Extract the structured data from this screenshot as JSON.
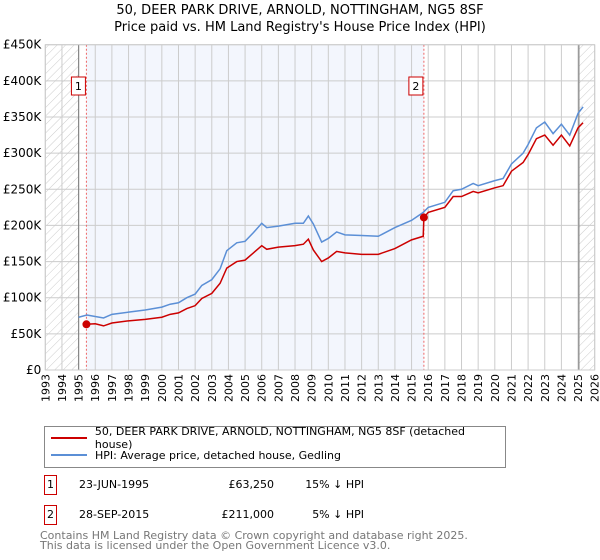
{
  "chart_data": {
    "type": "line",
    "title": "50, DEER PARK DRIVE, ARNOLD, NOTTINGHAM, NG5 8SF",
    "subtitle": "Price paid vs. HM Land Registry's House Price Index (HPI)",
    "xlim": [
      1993,
      2026
    ],
    "ylim": [
      0,
      450000
    ],
    "x_ticks": [
      "1993",
      "1994",
      "1995",
      "1996",
      "1997",
      "1998",
      "1999",
      "2000",
      "2001",
      "2002",
      "2003",
      "2004",
      "2005",
      "2006",
      "2007",
      "2008",
      "2009",
      "2010",
      "2011",
      "2012",
      "2013",
      "2014",
      "2015",
      "2016",
      "2017",
      "2018",
      "2019",
      "2020",
      "2021",
      "2022",
      "2023",
      "2024",
      "2025",
      "2026"
    ],
    "y_ticks": [
      {
        "v": 0,
        "l": "£0"
      },
      {
        "v": 50000,
        "l": "£50K"
      },
      {
        "v": 100000,
        "l": "£100K"
      },
      {
        "v": 150000,
        "l": "£150K"
      },
      {
        "v": 200000,
        "l": "£200K"
      },
      {
        "v": 250000,
        "l": "£250K"
      },
      {
        "v": 300000,
        "l": "£300K"
      },
      {
        "v": 350000,
        "l": "£350K"
      },
      {
        "v": 400000,
        "l": "£400K"
      },
      {
        "v": 450000,
        "l": "£450K"
      }
    ],
    "grid": true,
    "data_range": [
      1995,
      2025.05
    ],
    "series": [
      {
        "name": "50, DEER PARK DRIVE, ARNOLD, NOTTINGHAM, NG5 8SF (detached house)",
        "color": "#cc0000",
        "points": [
          [
            1995.47,
            63.25
          ],
          [
            1996,
            64
          ],
          [
            1996.5,
            61
          ],
          [
            1997,
            65
          ],
          [
            1998,
            68
          ],
          [
            1999,
            70
          ],
          [
            2000,
            73
          ],
          [
            2000.5,
            77
          ],
          [
            2001,
            79
          ],
          [
            2001.5,
            85
          ],
          [
            2002,
            89
          ],
          [
            2002.4,
            99
          ],
          [
            2003,
            106
          ],
          [
            2003.5,
            120
          ],
          [
            2003.9,
            141
          ],
          [
            2004.5,
            150
          ],
          [
            2005,
            152
          ],
          [
            2005.5,
            162
          ],
          [
            2006,
            172
          ],
          [
            2006.3,
            167
          ],
          [
            2007,
            170
          ],
          [
            2008,
            172
          ],
          [
            2008.5,
            174
          ],
          [
            2008.8,
            181
          ],
          [
            2009.1,
            166
          ],
          [
            2009.6,
            150
          ],
          [
            2010,
            155
          ],
          [
            2010.5,
            164
          ],
          [
            2011,
            162
          ],
          [
            2012,
            160
          ],
          [
            2013,
            160
          ],
          [
            2014,
            168
          ],
          [
            2015,
            180
          ],
          [
            2015.7,
            185
          ],
          [
            2015.74,
            211
          ],
          [
            2016,
            218
          ],
          [
            2017,
            225
          ],
          [
            2017.5,
            240
          ],
          [
            2018,
            240
          ],
          [
            2018.7,
            247
          ],
          [
            2019,
            245
          ],
          [
            2020,
            252
          ],
          [
            2020.5,
            255
          ],
          [
            2021,
            275
          ],
          [
            2021.7,
            287
          ],
          [
            2022,
            298
          ],
          [
            2022.5,
            320
          ],
          [
            2023,
            325
          ],
          [
            2023.5,
            311
          ],
          [
            2024,
            325
          ],
          [
            2024.5,
            310
          ],
          [
            2025,
            335
          ],
          [
            2025.3,
            342
          ]
        ]
      },
      {
        "name": "HPI: Average price, detached house, Gedling",
        "color": "#5b8fd6",
        "points": [
          [
            1995,
            73
          ],
          [
            1995.5,
            76
          ],
          [
            1996,
            74
          ],
          [
            1996.5,
            72
          ],
          [
            1997,
            77
          ],
          [
            1998,
            80
          ],
          [
            1999,
            83
          ],
          [
            2000,
            87
          ],
          [
            2000.5,
            91
          ],
          [
            2001,
            93
          ],
          [
            2001.5,
            100
          ],
          [
            2002,
            105
          ],
          [
            2002.4,
            117
          ],
          [
            2003,
            125
          ],
          [
            2003.5,
            140
          ],
          [
            2003.9,
            165
          ],
          [
            2004.5,
            176
          ],
          [
            2005,
            178
          ],
          [
            2005.5,
            190
          ],
          [
            2006,
            203
          ],
          [
            2006.3,
            197
          ],
          [
            2007,
            199
          ],
          [
            2008,
            203
          ],
          [
            2008.5,
            203
          ],
          [
            2008.8,
            213
          ],
          [
            2009.1,
            202
          ],
          [
            2009.6,
            177
          ],
          [
            2010,
            182
          ],
          [
            2010.5,
            191
          ],
          [
            2011,
            187
          ],
          [
            2012,
            186
          ],
          [
            2013,
            185
          ],
          [
            2014,
            197
          ],
          [
            2015,
            207
          ],
          [
            2015.7,
            218
          ],
          [
            2016,
            225
          ],
          [
            2017,
            232
          ],
          [
            2017.5,
            248
          ],
          [
            2018,
            250
          ],
          [
            2018.7,
            258
          ],
          [
            2019,
            255
          ],
          [
            2020,
            262
          ],
          [
            2020.5,
            265
          ],
          [
            2021,
            285
          ],
          [
            2021.7,
            300
          ],
          [
            2022,
            312
          ],
          [
            2022.5,
            335
          ],
          [
            2023,
            343
          ],
          [
            2023.5,
            327
          ],
          [
            2024,
            340
          ],
          [
            2024.5,
            325
          ],
          [
            2025,
            355
          ],
          [
            2025.3,
            364
          ]
        ]
      }
    ],
    "sales": [
      {
        "label": "1",
        "x": 1995.47,
        "y": 63.25
      },
      {
        "label": "2",
        "x": 2015.74,
        "y": 211
      }
    ]
  },
  "legend": {
    "items": [
      "50, DEER PARK DRIVE, ARNOLD, NOTTINGHAM, NG5 8SF (detached house)",
      "HPI: Average price, detached house, Gedling"
    ]
  },
  "transactions": [
    {
      "num": "1",
      "date": "23-JUN-1995",
      "price": "£63,250",
      "hpi": "15% ↓ HPI"
    },
    {
      "num": "2",
      "date": "28-SEP-2015",
      "price": "£211,000",
      "hpi": "5% ↓ HPI"
    }
  ],
  "footer": {
    "line1": "Contains HM Land Registry data © Crown copyright and database right 2025.",
    "line2": "This data is licensed under the Open Government Licence v3.0."
  }
}
